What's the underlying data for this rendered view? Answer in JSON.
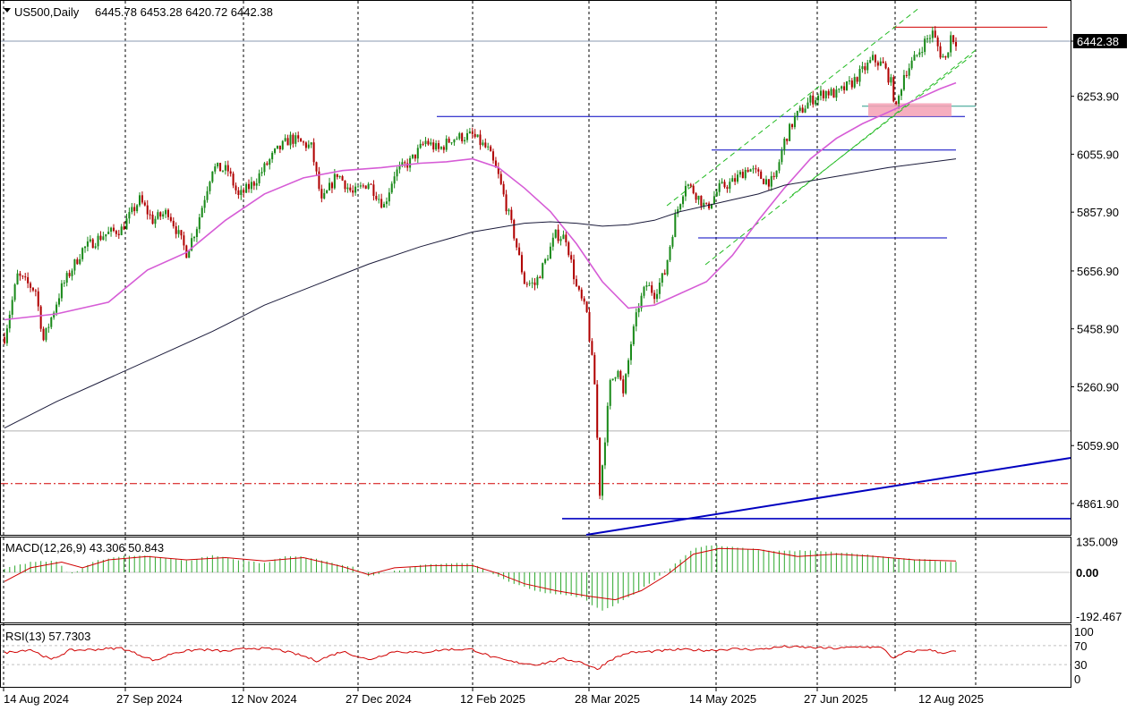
{
  "header": {
    "symbol": "US500,Daily",
    "ohlc": "6445.78 6453.28 6420.72 6442.38",
    "macd_label": "MACD(12,26,9) 43.306 50.843",
    "rsi_label": "RSI(13) 57.7303"
  },
  "colors": {
    "bull": "#1a8a1a",
    "bear": "#b00000",
    "ma_pink": "#d65cd6",
    "ma_dark": "#1a1a3a",
    "blue": "#0000c0",
    "red_level": "#d00000",
    "macd_hist": "#2ea82e",
    "macd_signal": "#d00000",
    "rsi_line": "#d00000",
    "channel": "#22bb22",
    "zone": "#f4a0b4"
  },
  "chart_data": [
    {
      "type": "candlestick",
      "panel": "main",
      "symbol": "US500",
      "timeframe": "Daily",
      "last_price": 6442.38,
      "y_ticks": [
        6442.38,
        6253.9,
        6055.9,
        5857.9,
        5656.9,
        5458.9,
        5260.9,
        5059.9,
        4861.9
      ],
      "x_labels": [
        "14 Aug 2024",
        "27 Sep 2024",
        "12 Nov 2024",
        "27 Dec 2024",
        "12 Feb 2025",
        "28 Mar 2025",
        "14 May 2025",
        "27 Jun 2025",
        "12 Aug 2025"
      ],
      "ylim": [
        4760,
        6560
      ],
      "close_path": [
        [
          0,
          5430
        ],
        [
          5,
          5640
        ],
        [
          12,
          5590
        ],
        [
          15,
          5420
        ],
        [
          22,
          5600
        ],
        [
          30,
          5730
        ],
        [
          38,
          5780
        ],
        [
          45,
          5800
        ],
        [
          52,
          5900
        ],
        [
          57,
          5830
        ],
        [
          63,
          5860
        ],
        [
          70,
          5720
        ],
        [
          74,
          5810
        ],
        [
          80,
          6010
        ],
        [
          86,
          6000
        ],
        [
          90,
          5910
        ],
        [
          96,
          5960
        ],
        [
          104,
          6060
        ],
        [
          110,
          6110
        ],
        [
          118,
          6080
        ],
        [
          122,
          5890
        ],
        [
          128,
          5990
        ],
        [
          134,
          5920
        ],
        [
          140,
          5960
        ],
        [
          146,
          5880
        ],
        [
          150,
          5990
        ],
        [
          156,
          6030
        ],
        [
          162,
          6100
        ],
        [
          167,
          6070
        ],
        [
          172,
          6110
        ],
        [
          180,
          6120
        ],
        [
          186,
          6070
        ],
        [
          190,
          5980
        ],
        [
          196,
          5780
        ],
        [
          200,
          5620
        ],
        [
          204,
          5610
        ],
        [
          208,
          5690
        ],
        [
          212,
          5780
        ],
        [
          216,
          5770
        ],
        [
          220,
          5600
        ],
        [
          224,
          5510
        ],
        [
          227,
          5270
        ],
        [
          229,
          4900
        ],
        [
          231,
          5090
        ],
        [
          233,
          5270
        ],
        [
          236,
          5330
        ],
        [
          238,
          5230
        ],
        [
          241,
          5410
        ],
        [
          244,
          5540
        ],
        [
          247,
          5610
        ],
        [
          250,
          5580
        ],
        [
          254,
          5650
        ],
        [
          258,
          5840
        ],
        [
          262,
          5960
        ],
        [
          266,
          5920
        ],
        [
          270,
          5870
        ],
        [
          275,
          5940
        ],
        [
          280,
          5960
        ],
        [
          286,
          6010
        ],
        [
          292,
          5970
        ],
        [
          296,
          5960
        ],
        [
          300,
          6100
        ],
        [
          304,
          6180
        ],
        [
          310,
          6240
        ],
        [
          316,
          6270
        ],
        [
          320,
          6260
        ],
        [
          326,
          6300
        ],
        [
          330,
          6340
        ],
        [
          334,
          6380
        ],
        [
          338,
          6360
        ],
        [
          341,
          6300
        ],
        [
          343,
          6210
        ],
        [
          346,
          6330
        ],
        [
          350,
          6380
        ],
        [
          354,
          6440
        ],
        [
          357,
          6470
        ],
        [
          360,
          6400
        ],
        [
          362,
          6380
        ],
        [
          364,
          6460
        ],
        [
          366,
          6442
        ]
      ],
      "ma_fast": [
        [
          0,
          5490
        ],
        [
          20,
          5510
        ],
        [
          40,
          5550
        ],
        [
          55,
          5660
        ],
        [
          70,
          5720
        ],
        [
          85,
          5830
        ],
        [
          100,
          5920
        ],
        [
          115,
          5975
        ],
        [
          130,
          6000
        ],
        [
          145,
          6010
        ],
        [
          160,
          6025
        ],
        [
          170,
          6030
        ],
        [
          180,
          6040
        ],
        [
          190,
          6010
        ],
        [
          200,
          5940
        ],
        [
          210,
          5860
        ],
        [
          220,
          5750
        ],
        [
          230,
          5620
        ],
        [
          240,
          5530
        ],
        [
          250,
          5540
        ],
        [
          260,
          5580
        ],
        [
          270,
          5620
        ],
        [
          280,
          5710
        ],
        [
          290,
          5830
        ],
        [
          300,
          5940
        ],
        [
          310,
          6040
        ],
        [
          320,
          6110
        ],
        [
          330,
          6160
        ],
        [
          340,
          6200
        ],
        [
          350,
          6240
        ],
        [
          360,
          6280
        ],
        [
          366,
          6300
        ]
      ],
      "ma_slow": [
        [
          0,
          5120
        ],
        [
          20,
          5210
        ],
        [
          40,
          5290
        ],
        [
          60,
          5370
        ],
        [
          80,
          5450
        ],
        [
          100,
          5540
        ],
        [
          120,
          5610
        ],
        [
          140,
          5680
        ],
        [
          160,
          5740
        ],
        [
          180,
          5790
        ],
        [
          200,
          5820
        ],
        [
          210,
          5825
        ],
        [
          220,
          5820
        ],
        [
          230,
          5810
        ],
        [
          240,
          5815
        ],
        [
          250,
          5830
        ],
        [
          260,
          5860
        ],
        [
          270,
          5880
        ],
        [
          280,
          5900
        ],
        [
          290,
          5920
        ],
        [
          300,
          5950
        ],
        [
          320,
          5980
        ],
        [
          340,
          6010
        ],
        [
          366,
          6040
        ]
      ],
      "levels": [
        {
          "value": 6490,
          "kind": "resistance",
          "color": "red"
        },
        {
          "value": 6185,
          "kind": "horizontal",
          "color": "blue"
        },
        {
          "value": 6070,
          "kind": "horizontal",
          "color": "blue"
        },
        {
          "value": 5770,
          "kind": "horizontal",
          "color": "blue"
        },
        {
          "value": 4810,
          "kind": "horizontal",
          "color": "blue"
        },
        {
          "value": 6220,
          "kind": "horizontal",
          "color": "green"
        },
        {
          "value": 4930,
          "kind": "dash-dot",
          "color": "red"
        },
        {
          "value": 5110,
          "kind": "horizontal",
          "color": "gray"
        }
      ],
      "zone": {
        "from": 6185,
        "to": 6230
      }
    },
    {
      "type": "macd",
      "panel": "macd",
      "params": "12,26,9",
      "macd": 43.306,
      "signal": 50.843,
      "y_ticks": [
        "135.009",
        "0.00",
        "-192.467"
      ],
      "ylim": [
        -192.467,
        135.009
      ],
      "hist_path": [
        [
          0,
          15
        ],
        [
          10,
          45
        ],
        [
          20,
          50
        ],
        [
          25,
          -10
        ],
        [
          35,
          50
        ],
        [
          45,
          70
        ],
        [
          55,
          75
        ],
        [
          70,
          50
        ],
        [
          80,
          75
        ],
        [
          90,
          55
        ],
        [
          100,
          40
        ],
        [
          108,
          70
        ],
        [
          115,
          70
        ],
        [
          125,
          45
        ],
        [
          135,
          20
        ],
        [
          140,
          -15
        ],
        [
          150,
          5
        ],
        [
          160,
          30
        ],
        [
          170,
          40
        ],
        [
          180,
          40
        ],
        [
          188,
          -10
        ],
        [
          196,
          -50
        ],
        [
          205,
          -85
        ],
        [
          215,
          -100
        ],
        [
          222,
          -110
        ],
        [
          227,
          -150
        ],
        [
          230,
          -170
        ],
        [
          240,
          -110
        ],
        [
          248,
          -50
        ],
        [
          256,
          20
        ],
        [
          265,
          105
        ],
        [
          272,
          120
        ],
        [
          280,
          110
        ],
        [
          295,
          95
        ],
        [
          310,
          95
        ],
        [
          330,
          80
        ],
        [
          345,
          60
        ],
        [
          355,
          55
        ],
        [
          366,
          45
        ]
      ],
      "signal_path": [
        [
          0,
          -40
        ],
        [
          10,
          20
        ],
        [
          22,
          45
        ],
        [
          30,
          20
        ],
        [
          40,
          55
        ],
        [
          55,
          70
        ],
        [
          70,
          55
        ],
        [
          85,
          65
        ],
        [
          100,
          50
        ],
        [
          115,
          65
        ],
        [
          130,
          25
        ],
        [
          140,
          -10
        ],
        [
          150,
          20
        ],
        [
          165,
          30
        ],
        [
          180,
          30
        ],
        [
          190,
          -5
        ],
        [
          200,
          -50
        ],
        [
          212,
          -80
        ],
        [
          225,
          -105
        ],
        [
          235,
          -120
        ],
        [
          245,
          -80
        ],
        [
          255,
          -10
        ],
        [
          265,
          80
        ],
        [
          275,
          105
        ],
        [
          290,
          100
        ],
        [
          305,
          70
        ],
        [
          320,
          80
        ],
        [
          335,
          70
        ],
        [
          350,
          55
        ],
        [
          366,
          50
        ]
      ]
    },
    {
      "type": "line",
      "panel": "rsi",
      "params": "13",
      "value": 57.7303,
      "y_ticks": [
        "100",
        "70",
        "30",
        "0"
      ],
      "ylim": [
        0,
        100
      ],
      "rsi_path": [
        [
          0,
          55
        ],
        [
          10,
          62
        ],
        [
          18,
          40
        ],
        [
          25,
          60
        ],
        [
          35,
          62
        ],
        [
          45,
          65
        ],
        [
          58,
          38
        ],
        [
          65,
          55
        ],
        [
          75,
          62
        ],
        [
          85,
          58
        ],
        [
          95,
          65
        ],
        [
          105,
          62
        ],
        [
          115,
          48
        ],
        [
          120,
          38
        ],
        [
          130,
          58
        ],
        [
          140,
          40
        ],
        [
          150,
          58
        ],
        [
          160,
          55
        ],
        [
          170,
          62
        ],
        [
          180,
          62
        ],
        [
          188,
          45
        ],
        [
          196,
          35
        ],
        [
          205,
          30
        ],
        [
          215,
          42
        ],
        [
          222,
          35
        ],
        [
          228,
          20
        ],
        [
          233,
          40
        ],
        [
          240,
          55
        ],
        [
          250,
          58
        ],
        [
          260,
          62
        ],
        [
          270,
          60
        ],
        [
          280,
          63
        ],
        [
          290,
          62
        ],
        [
          300,
          68
        ],
        [
          310,
          66
        ],
        [
          320,
          64
        ],
        [
          330,
          68
        ],
        [
          338,
          65
        ],
        [
          342,
          42
        ],
        [
          346,
          55
        ],
        [
          355,
          62
        ],
        [
          360,
          55
        ],
        [
          366,
          58
        ]
      ]
    }
  ]
}
